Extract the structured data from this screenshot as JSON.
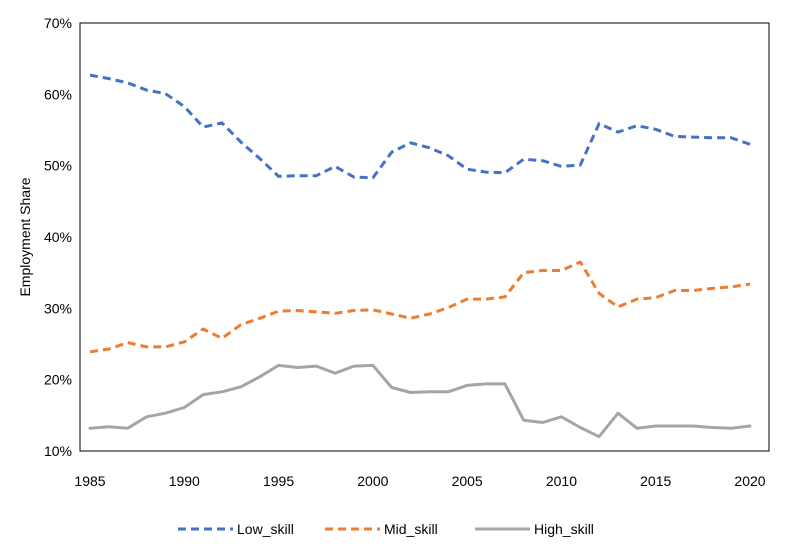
{
  "chart_data": {
    "type": "line",
    "title": "",
    "xlabel": "",
    "ylabel": "Employment Share",
    "x": [
      1985,
      1986,
      1987,
      1988,
      1989,
      1990,
      1991,
      1992,
      1993,
      1994,
      1995,
      1996,
      1997,
      1998,
      1999,
      2000,
      2001,
      2002,
      2003,
      2004,
      2005,
      2006,
      2007,
      2008,
      2009,
      2010,
      2011,
      2012,
      2013,
      2014,
      2015,
      2016,
      2017,
      2018,
      2019,
      2020
    ],
    "xlim": [
      1985,
      2020
    ],
    "xticks": [
      1985,
      1990,
      1995,
      2000,
      2005,
      2010,
      2015,
      2020
    ],
    "xtick_labels": [
      "1985",
      "1990",
      "1995",
      "2000",
      "2005",
      "2010",
      "2015",
      "2020"
    ],
    "ylim": [
      10,
      70
    ],
    "yticks": [
      10,
      20,
      30,
      40,
      50,
      60,
      70
    ],
    "ytick_labels": [
      "10%",
      "20%",
      "30%",
      "40%",
      "50%",
      "60%",
      "70%"
    ],
    "grid": false,
    "legend_position": "bottom",
    "series": [
      {
        "name": "Low_skill",
        "color": "#4472C4",
        "dash": "dashed",
        "values": [
          62.7,
          62.2,
          61.6,
          60.6,
          60.1,
          58.3,
          55.4,
          56.0,
          53.3,
          51.0,
          48.5,
          48.6,
          48.6,
          49.9,
          48.4,
          48.3,
          51.9,
          53.2,
          52.5,
          51.4,
          49.5,
          49.1,
          49.0,
          50.9,
          50.7,
          49.9,
          50.1,
          55.9,
          54.7,
          55.6,
          55.1,
          54.1,
          54.0,
          53.9,
          53.9,
          53.0
        ]
      },
      {
        "name": "Mid_skill",
        "color": "#ED7D31",
        "dash": "dashed",
        "values": [
          23.9,
          24.3,
          25.2,
          24.6,
          24.6,
          25.3,
          27.1,
          25.8,
          27.7,
          28.6,
          29.6,
          29.7,
          29.5,
          29.3,
          29.7,
          29.8,
          29.2,
          28.6,
          29.2,
          30.1,
          31.3,
          31.3,
          31.6,
          35.0,
          35.3,
          35.3,
          36.5,
          32.1,
          30.2,
          31.3,
          31.5,
          32.5,
          32.5,
          32.8,
          33.0,
          33.4
        ]
      },
      {
        "name": "High_skill",
        "color": "#A5A5A5",
        "dash": "solid",
        "values": [
          13.2,
          13.4,
          13.2,
          14.8,
          15.3,
          16.1,
          17.9,
          18.3,
          19.0,
          20.4,
          22.0,
          21.7,
          21.9,
          20.9,
          21.9,
          22.0,
          18.9,
          18.2,
          18.3,
          18.3,
          19.2,
          19.4,
          19.4,
          14.3,
          14.0,
          14.8,
          13.3,
          12.0,
          15.3,
          13.2,
          13.5,
          13.5,
          13.5,
          13.3,
          13.2,
          13.5
        ]
      }
    ]
  }
}
